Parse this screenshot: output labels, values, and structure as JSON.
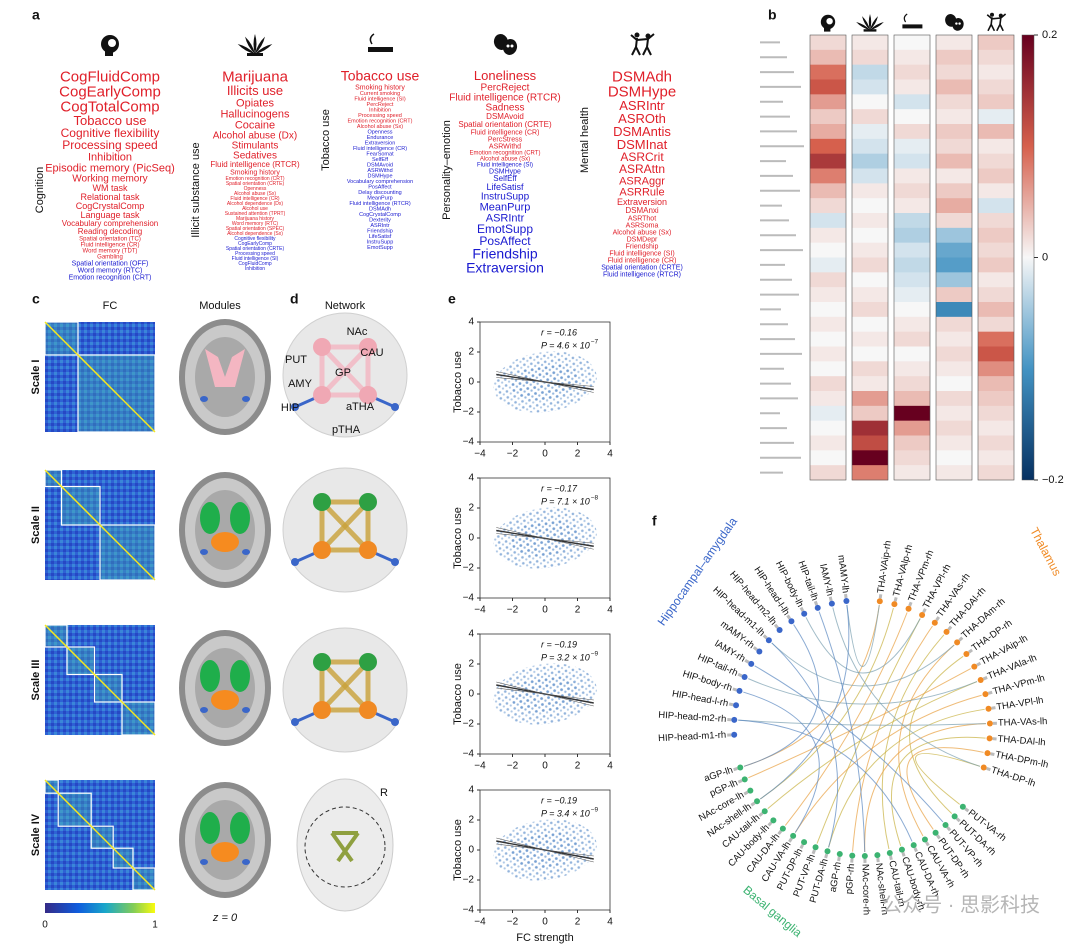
{
  "panel_letters": [
    "a",
    "b",
    "c",
    "d",
    "e",
    "f"
  ],
  "word_clouds": [
    {
      "label": "Cognition",
      "positive": [
        "CogFluidComp",
        "CogEarlyComp",
        "CogTotalComp",
        "Tobacco use",
        "Cognitive flexibility",
        "Processing speed",
        "Inhibition",
        "Episodic memory (PicSeq)",
        "Working memory",
        "WM task",
        "Relational task",
        "CogCrystalComp",
        "Language task",
        "Vocabulary comprehension",
        "Reading decoding",
        "Spatial orientation (TC)",
        "Fluid intelligence (CR)",
        "Word memory (TDT)",
        "Gambling"
      ],
      "negative": [
        "Spatial orientation (OFF)",
        "Word memory (RTC)",
        "Emotion recognition (CRT)"
      ]
    },
    {
      "label": "Illicit substance use",
      "positive": [
        "Marijuana",
        "Illicits use",
        "Opiates",
        "Hallucinogens",
        "Cocaine",
        "Alcohol abuse (Dx)",
        "Stimulants",
        "Sedatives",
        "Fluid intelligence (RTCR)",
        "Smoking history",
        "Emotion recognition (CRT)",
        "Spatial orientation (CRTE)",
        "Openness",
        "Alcohol abuse (Sx)",
        "Fluid intelligence (CR)",
        "Alcohol dependence (Dx)",
        "Alcohol use",
        "Sustained attention (TPRT)",
        "Marijuana history",
        "Word memory (RTC)",
        "Spatial orientation (SPEC)",
        "Alcohol dependence (Sx)"
      ],
      "negative": [
        "Cognitive flexibility",
        "CogEarlyComp",
        "Spatial orientation (CRTE)",
        "Processing speed",
        "Fluid intelligence (SI)",
        "CogFluidComp",
        "Inhibition"
      ]
    },
    {
      "label": "Tobacco use",
      "positive": [
        "Tobacco use",
        "Smoking history",
        "Current smoking",
        "Fluid intelligence (SI)",
        "PercReject",
        "Inhibition",
        "Processing speed",
        "Emotion recognition (CRT)",
        "Alcohol abuse (Sx)"
      ],
      "negative": [
        "Openness",
        "Endurance",
        "Extraversion",
        "Fluid intelligence (CR)",
        "FearSomat",
        "SelfEff",
        "DSMAvoid",
        "ASRWithd",
        "DSMHype",
        "Vocabulary comprehension",
        "PosAffect",
        "Delay discounting",
        "MeanPurp",
        "Fluid intelligence (RTCR)",
        "DSMAdh",
        "CogCrystalComp",
        "Dexterity",
        "ASRIntr",
        "Friendship",
        "LifeSatisf",
        "InstruSupp",
        "EmotSupp"
      ]
    },
    {
      "label": "Personality–emotion",
      "positive": [
        "Loneliness",
        "PercReject",
        "Fluid intelligence (RTCR)",
        "Sadness",
        "DSMAvoid",
        "Spatial orientation (CRTE)",
        "Fluid intelligence (CR)",
        "PercStress",
        "ASRWithd",
        "Emotion recognition (CRT)",
        "Alcohol abuse (Sx)"
      ],
      "negative": [
        "Fluid intelligence (SI)",
        "DSMHype",
        "SelfEff",
        "LifeSatisf",
        "InstruSupp",
        "MeanPurp",
        "ASRIntr",
        "EmotSupp",
        "PosAffect",
        "Friendship",
        "Extraversion"
      ]
    },
    {
      "label": "Mental health",
      "positive": [
        "DSMAdh",
        "DSMHype",
        "ASRIntr",
        "ASROth",
        "DSMAntis",
        "DSMInat",
        "ASRCrit",
        "ASRAttn",
        "ASRAggr",
        "ASRRule",
        "Extraversion",
        "DSMAnxi",
        "ASRThot",
        "ASRSoma",
        "Alcohol abuse (Sx)",
        "DSMDepr",
        "Friendship",
        "Fluid intelligence (SI)",
        "Fluid intelligence (CR)"
      ],
      "negative": [
        "Spatial orientation (CRTE)",
        "Fluid intelligence (RTCR)"
      ]
    }
  ],
  "heatmap": {
    "values": [
      [
        0.02,
        0.01,
        0.0,
        0.01,
        0.03
      ],
      [
        0.04,
        0.02,
        0.01,
        0.03,
        0.02
      ],
      [
        0.09,
        -0.03,
        0.02,
        0.02,
        0.01
      ],
      [
        0.11,
        -0.02,
        0.01,
        0.04,
        0.02
      ],
      [
        0.06,
        0.0,
        -0.02,
        0.02,
        0.03
      ],
      [
        0.03,
        0.02,
        0.0,
        0.01,
        -0.01
      ],
      [
        0.05,
        -0.01,
        0.02,
        0.03,
        0.04
      ],
      [
        0.1,
        -0.02,
        -0.01,
        0.02,
        0.01
      ],
      [
        0.14,
        -0.04,
        -0.02,
        0.04,
        0.02
      ],
      [
        0.08,
        -0.02,
        0.01,
        0.01,
        0.03
      ],
      [
        0.04,
        0.01,
        0.02,
        0.03,
        0.01
      ],
      [
        0.02,
        0.0,
        0.01,
        0.05,
        -0.02
      ],
      [
        -0.02,
        0.01,
        -0.03,
        0.02,
        0.02
      ],
      [
        0.01,
        0.0,
        -0.04,
        -0.05,
        0.03
      ],
      [
        0.0,
        0.01,
        -0.02,
        -0.08,
        0.02
      ],
      [
        -0.01,
        0.02,
        -0.03,
        -0.09,
        0.03
      ],
      [
        0.02,
        0.0,
        -0.02,
        -0.05,
        0.01
      ],
      [
        0.01,
        0.01,
        -0.01,
        0.03,
        0.02
      ],
      [
        0.0,
        0.02,
        0.0,
        -0.11,
        0.04
      ],
      [
        0.01,
        0.0,
        0.01,
        0.02,
        0.02
      ],
      [
        0.0,
        0.01,
        0.02,
        0.01,
        0.09
      ],
      [
        0.01,
        0.0,
        0.0,
        0.02,
        0.11
      ],
      [
        0.0,
        0.02,
        0.01,
        0.01,
        0.07
      ],
      [
        0.02,
        0.01,
        0.02,
        0.0,
        0.04
      ],
      [
        0.01,
        0.06,
        0.04,
        0.02,
        0.03
      ],
      [
        -0.01,
        0.03,
        0.2,
        0.01,
        0.02
      ],
      [
        0.0,
        0.15,
        0.06,
        0.02,
        0.01
      ],
      [
        0.01,
        0.12,
        0.03,
        0.01,
        0.02
      ],
      [
        0.0,
        0.21,
        0.02,
        0.0,
        0.01
      ],
      [
        0.02,
        0.08,
        0.01,
        0.01,
        0.02
      ]
    ],
    "clim": [
      -0.2,
      0.2
    ],
    "cticks": [
      0.2,
      0,
      {
        "value": -0.2,
        "label": "−0.2"
      }
    ]
  },
  "fc": {
    "title": "FC",
    "modules_title": "Modules",
    "scales": [
      "Scale I",
      "Scale II",
      "Scale III",
      "Scale IV"
    ],
    "colorbar_ticks": [
      0,
      1
    ],
    "slice_label": "z = 0"
  },
  "network": {
    "title": "Network",
    "labels": [
      "NAc",
      "CAU",
      "PUT",
      "GP",
      "AMY",
      "HIP",
      "aTHA",
      "pTHA"
    ],
    "side": "R"
  },
  "scatter": {
    "ylabel": "Tobacco use",
    "xlabel": "FC strength",
    "xlim": [
      -4,
      4
    ],
    "xticks": [
      {
        "value": -4,
        "label": "−4"
      },
      {
        "value": -2,
        "label": "−2"
      },
      0,
      2,
      4
    ],
    "ylim": [
      -4,
      4
    ],
    "yticks": [
      {
        "value": -4,
        "label": "−4"
      },
      {
        "value": -2,
        "label": "−2"
      },
      0,
      2,
      4
    ],
    "fit_x": [
      -3,
      3
    ],
    "plots": [
      {
        "r": "r = −0.16",
        "p": "P = 4.6 × 10",
        "p_exp": "−7",
        "fit_y": [
          0.5,
          -0.5
        ]
      },
      {
        "r": "r = −0.17",
        "p": "P = 7.1 × 10",
        "p_exp": "−8",
        "fit_y": [
          0.5,
          -0.55
        ]
      },
      {
        "r": "r = −0.19",
        "p": "P = 3.2 × 10",
        "p_exp": "−9",
        "fit_y": [
          0.6,
          -0.6
        ]
      },
      {
        "r": "r = −0.19",
        "p": "P = 3.4 × 10",
        "p_exp": "−9",
        "fit_y": [
          0.6,
          -0.6
        ]
      }
    ]
  },
  "circle": {
    "groups": [
      {
        "title": "Hippocampal–amygdala",
        "color": "#3a66c9",
        "labels": [
          "mAMY-lh",
          "lAMY-lh",
          "HIP-tail-lh",
          "HIP-body-lh",
          "HIP-head-l-lh",
          "HIP-head-m2-lh",
          "HIP-head-m1-lh",
          "mAMY-rh",
          "lAMY-rh",
          "HIP-tail-rh",
          "HIP-body-rh",
          "HIP-head-l-rh",
          "HIP-head-m2-rh",
          "HIP-head-m1-rh"
        ]
      },
      {
        "title": "Thalamus",
        "color": "#f08a24",
        "labels": [
          "THA-VAip-rh",
          "THA-VAlp-rh",
          "THA-VPm-rh",
          "THA-VPl-rh",
          "THA-VAs-rh",
          "THA-DAl-rh",
          "THA-DAm-rh",
          "THA-DP-rh",
          "THA-VAip-lh",
          "THA-VAla-lh",
          "THA-VPm-lh",
          "THA-VPl-lh",
          "THA-VAs-lh",
          "THA-DAl-lh",
          "THA-DPm-lh",
          "THA-DP-lh"
        ]
      },
      {
        "title": "Basal ganglia",
        "color": "#3cb371",
        "labels": [
          "aGP-lh",
          "pGP-lh",
          "NAc-core-lh",
          "NAc-shell-lh",
          "CAU-tail-lh",
          "CAU-body-lh",
          "CAU-DA-lh",
          "CAU-VA-lh",
          "PUT-DP-lh",
          "PUT-VP-lh",
          "PUT-DA-lh",
          "aGP-rh",
          "pGP-rh",
          "NAc-core-rh",
          "NAc-shell-rh",
          "CAU-tail-rh",
          "CAU-body-rh",
          "CAU-DA-rh",
          "CAU-VA-rh",
          "PUT-DP-rh",
          "PUT-VP-rh",
          "PUT-DA-rh",
          "PUT-VA-rh"
        ]
      }
    ]
  },
  "watermark": "公众号 · 思影科技"
}
